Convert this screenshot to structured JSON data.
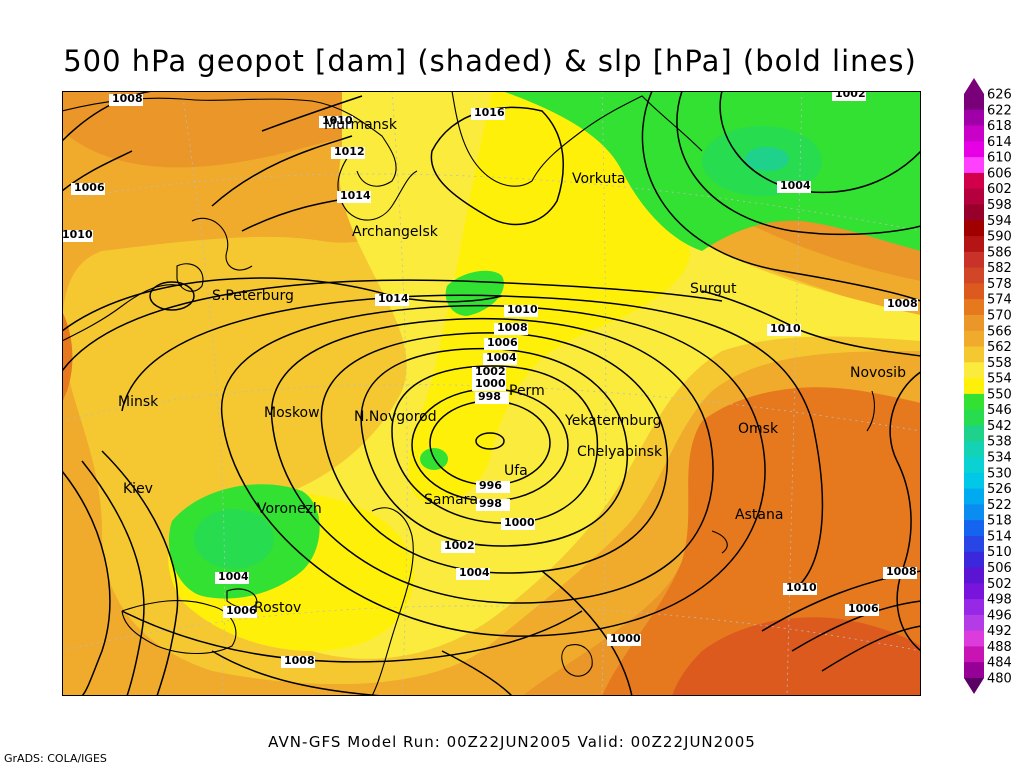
{
  "title": "500 hPa geopot [dam] (shaded) & slp [hPa] (bold lines)",
  "footer": "AVN-GFS Model Run: 00Z22JUN2005 Valid: 00Z22JUN2005",
  "credit": "GrADS: COLA/IGES",
  "legend": {
    "levels": [
      "626",
      "622",
      "618",
      "614",
      "610",
      "606",
      "602",
      "598",
      "594",
      "590",
      "586",
      "582",
      "578",
      "574",
      "570",
      "566",
      "562",
      "558",
      "554",
      "550",
      "546",
      "542",
      "538",
      "534",
      "530",
      "526",
      "522",
      "518",
      "514",
      "510",
      "506",
      "502",
      "498",
      "496",
      "492",
      "488",
      "484",
      "480"
    ],
    "colors": [
      "#7a007a",
      "#a000a8",
      "#c800c8",
      "#e600e6",
      "#ff40ff",
      "#d2004a",
      "#b4003c",
      "#96002a",
      "#a00000",
      "#b41414",
      "#c83228",
      "#d24628",
      "#dc5a1e",
      "#e6781e",
      "#eb9628",
      "#f0aa2c",
      "#f5c832",
      "#faeb3c",
      "#fff00a",
      "#32e132",
      "#28dc50",
      "#1ed28c",
      "#14d2b4",
      "#0ad2d2",
      "#00c8e6",
      "#00aaf0",
      "#0a8cf0",
      "#1464f0",
      "#2846e6",
      "#3c28dc",
      "#5a14d2",
      "#7814dc",
      "#9628e6",
      "#b43ce6",
      "#dc3cdc",
      "#c814b4",
      "#960096",
      "#5a0064"
    ]
  },
  "cities": [
    {
      "name": "Murmansk"
    },
    {
      "name": "Vorkuta"
    },
    {
      "name": "Archangelsk"
    },
    {
      "name": "S.Peterburg"
    },
    {
      "name": "Surgut"
    },
    {
      "name": "Minsk"
    },
    {
      "name": "Moskow"
    },
    {
      "name": "N.Novgorod"
    },
    {
      "name": "Perm"
    },
    {
      "name": "Yekaterinburg"
    },
    {
      "name": "Novosib"
    },
    {
      "name": "Omsk"
    },
    {
      "name": "Chelyabinsk"
    },
    {
      "name": "Ufa"
    },
    {
      "name": "Kiev"
    },
    {
      "name": "Voronezh"
    },
    {
      "name": "Samara"
    },
    {
      "name": "Astana"
    },
    {
      "name": "Rostov"
    }
  ],
  "isobar_labels": [
    "1008",
    "1010",
    "1012",
    "1014",
    "1016",
    "1006",
    "1002",
    "1004",
    "1010",
    "1014",
    "1010",
    "1008",
    "1010",
    "1008",
    "1006",
    "1004",
    "1002",
    "1000",
    "998",
    "996",
    "998",
    "1000",
    "1002",
    "1004",
    "1004",
    "1006",
    "1008",
    "1010",
    "1008",
    "1006",
    "1000",
    "1004",
    "1008"
  ]
}
